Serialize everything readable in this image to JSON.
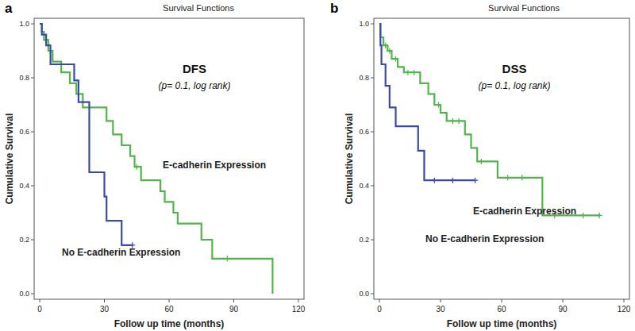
{
  "chart_data": [
    {
      "type": "line",
      "panel": "a",
      "title": "Survival Functions",
      "annotation": "DFS",
      "subtitle": "(p= 0.1, log rank)",
      "x_label": "Follow up time (months)",
      "y_label": "Cumulative Survival",
      "xlim": [
        0,
        120
      ],
      "xticks": [
        0,
        30,
        60,
        90,
        120
      ],
      "ylim": [
        0,
        1
      ],
      "yticks": [
        {
          "value": 0,
          "label": "0.0"
        },
        {
          "value": 0.2,
          "label": "0.2"
        },
        {
          "value": 0.4,
          "label": "0.4"
        },
        {
          "value": 0.6,
          "label": "0.6"
        },
        {
          "value": 0.8,
          "label": "0.8"
        },
        {
          "value": 1,
          "label": "1.0"
        }
      ],
      "grid": false,
      "series": [
        {
          "name": "E-cadherin Expression",
          "color": "#52b54b",
          "line_style": "step",
          "marker": "plus",
          "x": [
            0,
            1,
            2,
            4,
            6,
            10,
            14,
            17,
            20,
            31,
            34,
            38,
            42,
            44,
            47,
            56,
            58,
            62,
            64,
            75,
            80,
            108
          ],
          "values": [
            1,
            0.97,
            0.94,
            0.9,
            0.86,
            0.82,
            0.78,
            0.74,
            0.69,
            0.64,
            0.59,
            0.55,
            0.51,
            0.47,
            0.42,
            0.38,
            0.34,
            0.3,
            0.26,
            0.2,
            0.13,
            0
          ],
          "censored": [
            3,
            45,
            87
          ]
        },
        {
          "name": "No E-cadherin Expression",
          "color": "#3b4ba3",
          "line_style": "step",
          "marker": "plus",
          "x": [
            0,
            1,
            3,
            5,
            16,
            18,
            23,
            30,
            31,
            38,
            43
          ],
          "values": [
            1,
            0.96,
            0.92,
            0.85,
            0.79,
            0.71,
            0.45,
            0.36,
            0.27,
            0.18,
            0.18
          ],
          "censored": [
            43
          ]
        }
      ]
    },
    {
      "type": "line",
      "panel": "b",
      "title": "Survival Functions",
      "annotation": "DSS",
      "subtitle": "(p= 0.1, log rank)",
      "x_label": "Follow up time (months)",
      "y_label": "Cumulative Survival",
      "xlim": [
        0,
        120
      ],
      "xticks": [
        0,
        30,
        60,
        90,
        120
      ],
      "ylim": [
        0,
        1
      ],
      "yticks": [
        {
          "value": 0,
          "label": "0.0"
        },
        {
          "value": 0.2,
          "label": "0.2"
        },
        {
          "value": 0.4,
          "label": "0.4"
        },
        {
          "value": 0.6,
          "label": "0.6"
        },
        {
          "value": 0.8,
          "label": "0.8"
        },
        {
          "value": 1,
          "label": "1.0"
        }
      ],
      "grid": false,
      "series": [
        {
          "name": "E-cadherin Expression",
          "color": "#52b54b",
          "line_style": "step",
          "marker": "plus",
          "x": [
            0,
            0.5,
            2,
            4,
            6,
            9,
            12,
            20,
            24,
            27,
            30,
            33,
            42,
            45,
            48,
            58,
            80,
            108
          ],
          "values": [
            1,
            0.95,
            0.92,
            0.9,
            0.87,
            0.84,
            0.82,
            0.78,
            0.74,
            0.7,
            0.67,
            0.64,
            0.59,
            0.54,
            0.49,
            0.43,
            0.29,
            0.29
          ],
          "censored": [
            3,
            5,
            8,
            14,
            17,
            29,
            36,
            39,
            50,
            63,
            70,
            86,
            100,
            108
          ]
        },
        {
          "name": "No E-cadherin Expression",
          "color": "#3b4ba3",
          "line_style": "step",
          "marker": "plus",
          "x": [
            0,
            0.5,
            1,
            3,
            5,
            8,
            19,
            22,
            47
          ],
          "values": [
            1,
            0.92,
            0.85,
            0.77,
            0.69,
            0.62,
            0.53,
            0.42,
            0.42
          ],
          "censored": [
            27,
            36,
            47
          ]
        }
      ]
    }
  ]
}
